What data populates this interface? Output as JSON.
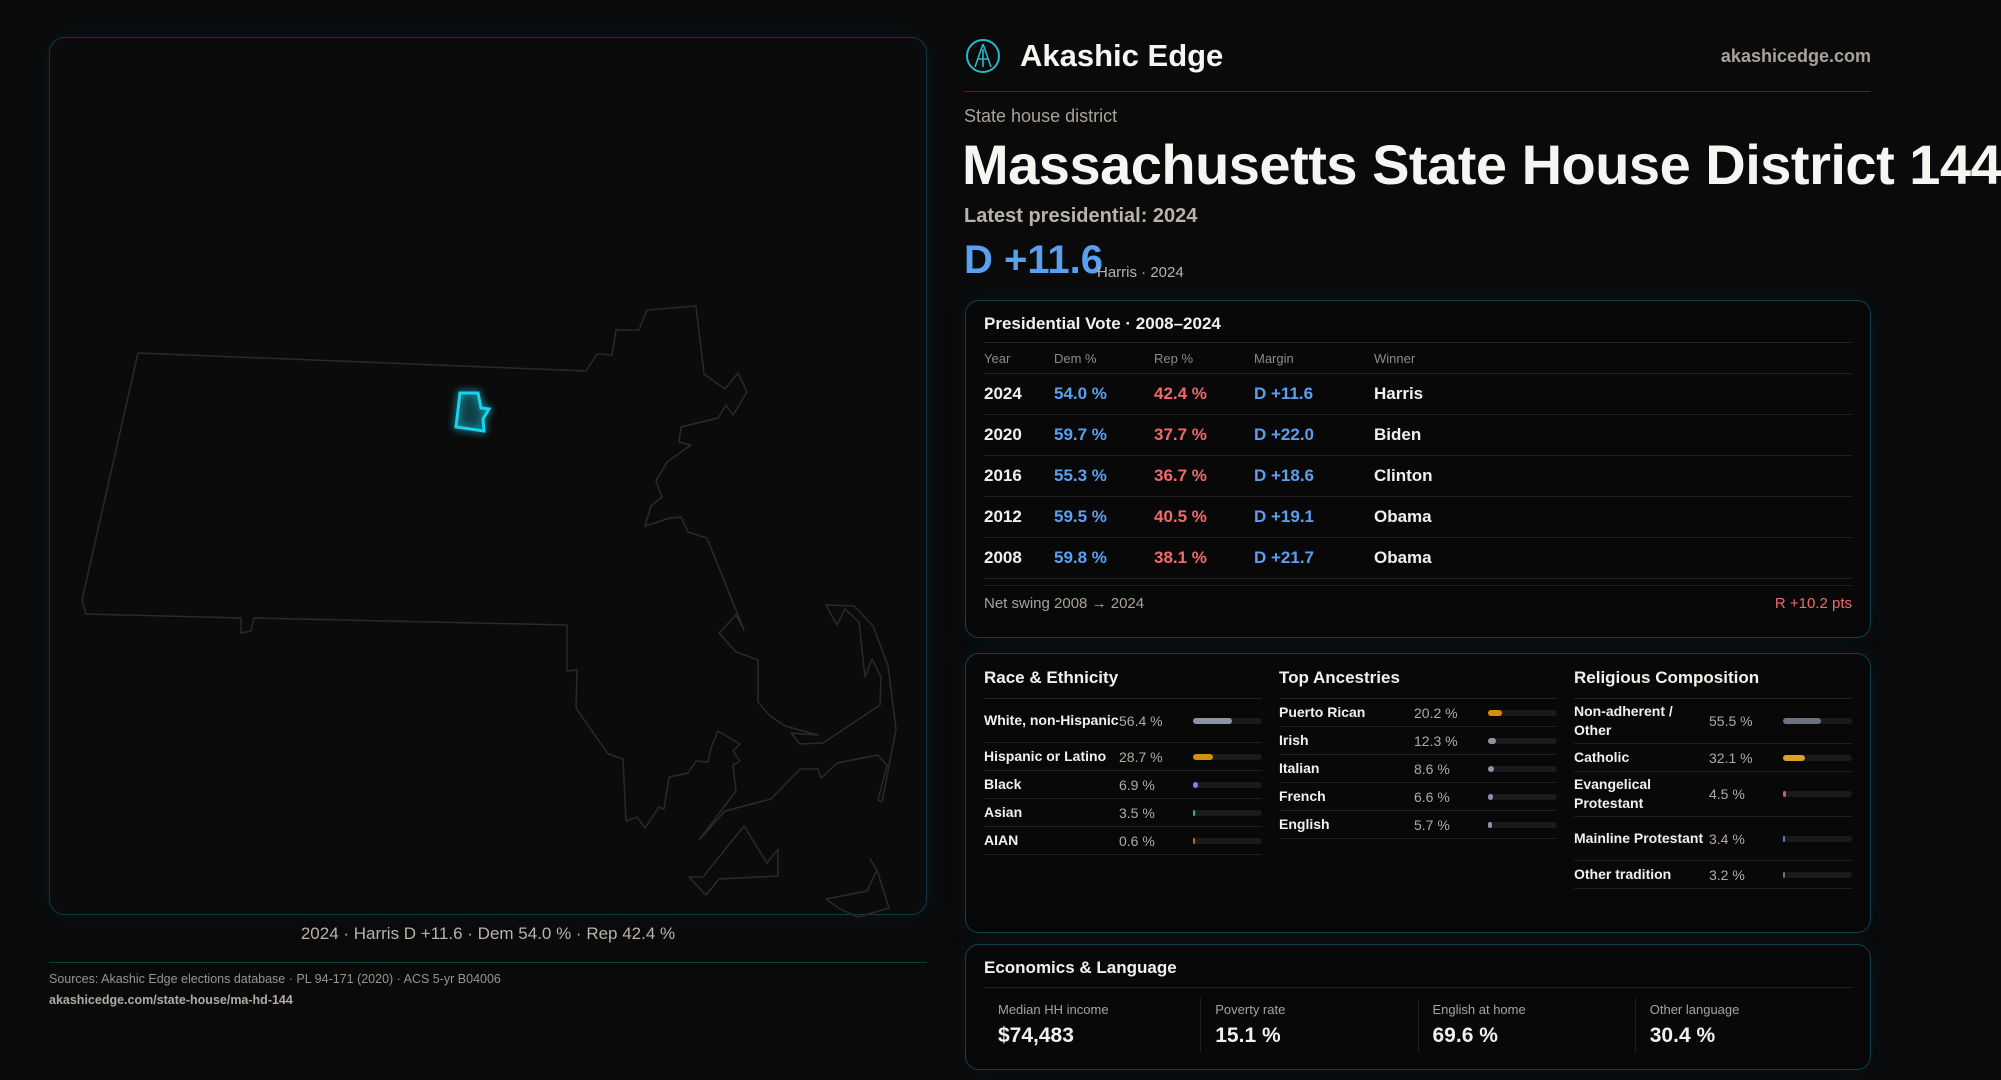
{
  "brand": {
    "name": "Akashic Edge",
    "site": "akashicedge.com",
    "logo_icon": "compass-emblem-icon"
  },
  "kicker": "State house district",
  "title": "Massachusetts State House District 144",
  "latest": "Latest presidential: 2024",
  "margin": {
    "value": "D +11.6",
    "sub": "Harris · 2024"
  },
  "map": {
    "caption": "2024 · Harris D +11.6 · Dem 54.0 % · Rep 42.4 %",
    "highlight_color": "#19d3ec"
  },
  "presidential": {
    "title": "Presidential Vote · 2008–2024",
    "headers": [
      "Year",
      "Dem %",
      "Rep %",
      "Margin",
      "Winner"
    ],
    "rows": [
      {
        "year": "2024",
        "dem": "54.0 %",
        "rep": "42.4 %",
        "margin": "D +11.6",
        "winner": "Harris"
      },
      {
        "year": "2020",
        "dem": "59.7 %",
        "rep": "37.7 %",
        "margin": "D +22.0",
        "winner": "Biden"
      },
      {
        "year": "2016",
        "dem": "55.3 %",
        "rep": "36.7 %",
        "margin": "D +18.6",
        "winner": "Clinton"
      },
      {
        "year": "2012",
        "dem": "59.5 %",
        "rep": "40.5 %",
        "margin": "D +19.1",
        "winner": "Obama"
      },
      {
        "year": "2008",
        "dem": "59.8 %",
        "rep": "38.1 %",
        "margin": "D +21.7",
        "winner": "Obama"
      }
    ],
    "swing_label": "Net swing 2008 → 2024",
    "swing_value": "R +10.2 pts"
  },
  "demographics": [
    {
      "title": "Race & Ethnicity",
      "items": [
        {
          "label": "White, non-Hispanic",
          "pct": "56.4 %",
          "value": 56.4,
          "color": "#8a94a6"
        },
        {
          "label": "Hispanic or Latino",
          "pct": "28.7 %",
          "value": 28.7,
          "color": "#d4900a"
        },
        {
          "label": "Black",
          "pct": "6.9 %",
          "value": 6.9,
          "color": "#9274f0"
        },
        {
          "label": "Asian",
          "pct": "3.5 %",
          "value": 3.5,
          "color": "#2bb58f"
        },
        {
          "label": "AIAN",
          "pct": "0.6 %",
          "value": 0.6,
          "color": "#c06a1a"
        }
      ]
    },
    {
      "title": "Top Ancestries",
      "items": [
        {
          "label": "Puerto Rican",
          "pct": "20.2 %",
          "value": 20.2,
          "color": "#d4900a"
        },
        {
          "label": "Irish",
          "pct": "12.3 %",
          "value": 12.3,
          "color": "#8a94a6"
        },
        {
          "label": "Italian",
          "pct": "8.6 %",
          "value": 8.6,
          "color": "#8a94a6"
        },
        {
          "label": "French",
          "pct": "6.6 %",
          "value": 6.6,
          "color": "#8a94a6"
        },
        {
          "label": "English",
          "pct": "5.7 %",
          "value": 5.7,
          "color": "#8a94a6"
        }
      ]
    },
    {
      "title": "Religious Composition",
      "items": [
        {
          "label": "Non-adherent / Other",
          "pct": "55.5 %",
          "value": 55.5,
          "color": "#6b7180"
        },
        {
          "label": "Catholic",
          "pct": "32.1 %",
          "value": 32.1,
          "color": "#d9a520"
        },
        {
          "label": "Evangelical Protestant",
          "pct": "4.5 %",
          "value": 4.5,
          "color": "#e05555"
        },
        {
          "label": "Mainline Protestant",
          "pct": "3.4 %",
          "value": 3.4,
          "color": "#4a7fd4"
        },
        {
          "label": "Other tradition",
          "pct": "3.2 %",
          "value": 3.2,
          "color": "#6b7180"
        }
      ]
    }
  ],
  "economics": {
    "title": "Economics & Language",
    "stats": [
      {
        "label": "Median HH income",
        "value": "$74,483"
      },
      {
        "label": "Poverty rate",
        "value": "15.1 %"
      },
      {
        "label": "English at home",
        "value": "69.6 %"
      },
      {
        "label": "Other language",
        "value": "30.4 %"
      }
    ]
  },
  "footer": {
    "sources": "Sources: Akashic Edge elections database · PL 94-171 (2020) · ACS 5-yr B04006",
    "url": "akashicedge.com/state-house/ma-hd-144"
  }
}
